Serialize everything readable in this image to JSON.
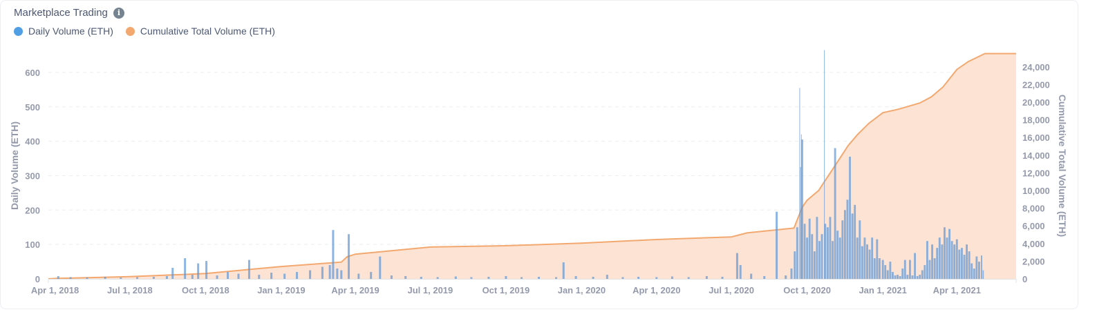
{
  "header": {
    "title": "Marketplace Trading",
    "info_icon": "info-circle-icon"
  },
  "chart_data": {
    "type": "bar+area",
    "title": "Marketplace Trading",
    "legend_position": "top-left",
    "grid": true,
    "series": [
      {
        "name": "Daily Volume (ETH)",
        "type": "bar",
        "axis": "left",
        "color": "#509ee3"
      },
      {
        "name": "Cumulative Total Volume (ETH)",
        "type": "area",
        "axis": "right",
        "color": "#f2a86f"
      }
    ],
    "xlabel": "",
    "ylabel_left": "Daily Volume (ETH)",
    "ylabel_right": "Cumulative Total Volume (ETH)",
    "xlim": [
      "2018-03-24",
      "2021-06-12"
    ],
    "ylim_left": [
      0,
      660
    ],
    "ylim_right": [
      0,
      25700
    ],
    "x_ticks": [
      {
        "date": "2018-04-01",
        "label": "Apr 1, 2018"
      },
      {
        "date": "2018-07-01",
        "label": "Jul 1, 2018"
      },
      {
        "date": "2018-10-01",
        "label": "Oct 1, 2018"
      },
      {
        "date": "2019-01-01",
        "label": "Jan 1, 2019"
      },
      {
        "date": "2019-04-01",
        "label": "Apr 1, 2019"
      },
      {
        "date": "2019-07-01",
        "label": "Jul 1, 2019"
      },
      {
        "date": "2019-10-01",
        "label": "Oct 1, 2019"
      },
      {
        "date": "2020-01-01",
        "label": "Jan 1, 2020"
      },
      {
        "date": "2020-04-01",
        "label": "Apr 1, 2020"
      },
      {
        "date": "2020-07-01",
        "label": "Jul 1, 2020"
      },
      {
        "date": "2020-10-01",
        "label": "Oct 1, 2020"
      },
      {
        "date": "2021-01-01",
        "label": "Jan 1, 2021"
      },
      {
        "date": "2021-04-01",
        "label": "Apr 1, 2021"
      }
    ],
    "y_ticks_left": [
      {
        "v": 0,
        "label": "0"
      },
      {
        "v": 100,
        "label": "100"
      },
      {
        "v": 200,
        "label": "200"
      },
      {
        "v": 300,
        "label": "300"
      },
      {
        "v": 400,
        "label": "400"
      },
      {
        "v": 500,
        "label": "500"
      },
      {
        "v": 600,
        "label": "600"
      }
    ],
    "y_ticks_right": [
      {
        "v": 0,
        "label": "0"
      },
      {
        "v": 2000,
        "label": "2,000"
      },
      {
        "v": 4000,
        "label": "4,000"
      },
      {
        "v": 6000,
        "label": "6,000"
      },
      {
        "v": 8000,
        "label": "8,000"
      },
      {
        "v": 10000,
        "label": "10,000"
      },
      {
        "v": 12000,
        "label": "12,000"
      },
      {
        "v": 14000,
        "label": "14,000"
      },
      {
        "v": 16000,
        "label": "16,000"
      },
      {
        "v": 18000,
        "label": "18,000"
      },
      {
        "v": 20000,
        "label": "20,000"
      },
      {
        "v": 22000,
        "label": "22,000"
      },
      {
        "v": 24000,
        "label": "24,000"
      }
    ],
    "daily_volume": [
      [
        "2018-04-05",
        8
      ],
      [
        "2018-04-20",
        5
      ],
      [
        "2018-05-10",
        4
      ],
      [
        "2018-06-01",
        6
      ],
      [
        "2018-06-20",
        4
      ],
      [
        "2018-07-10",
        5
      ],
      [
        "2018-07-30",
        6
      ],
      [
        "2018-08-15",
        8
      ],
      [
        "2018-08-22",
        32
      ],
      [
        "2018-09-06",
        60
      ],
      [
        "2018-09-15",
        12
      ],
      [
        "2018-09-22",
        45
      ],
      [
        "2018-10-02",
        52
      ],
      [
        "2018-10-15",
        10
      ],
      [
        "2018-10-28",
        20
      ],
      [
        "2018-11-10",
        15
      ],
      [
        "2018-11-23",
        55
      ],
      [
        "2018-12-05",
        12
      ],
      [
        "2018-12-20",
        18
      ],
      [
        "2019-01-05",
        15
      ],
      [
        "2019-01-20",
        20
      ],
      [
        "2019-02-05",
        25
      ],
      [
        "2019-02-20",
        35
      ],
      [
        "2019-03-01",
        40
      ],
      [
        "2019-03-05",
        142
      ],
      [
        "2019-03-10",
        30
      ],
      [
        "2019-03-15",
        25
      ],
      [
        "2019-03-24",
        130
      ],
      [
        "2019-04-05",
        15
      ],
      [
        "2019-04-20",
        20
      ],
      [
        "2019-05-01",
        65
      ],
      [
        "2019-05-15",
        10
      ],
      [
        "2019-06-01",
        8
      ],
      [
        "2019-06-20",
        6
      ],
      [
        "2019-07-10",
        5
      ],
      [
        "2019-08-01",
        7
      ],
      [
        "2019-08-20",
        5
      ],
      [
        "2019-09-10",
        6
      ],
      [
        "2019-10-01",
        8
      ],
      [
        "2019-10-20",
        5
      ],
      [
        "2019-11-10",
        6
      ],
      [
        "2019-12-01",
        5
      ],
      [
        "2019-12-10",
        48
      ],
      [
        "2019-12-25",
        8
      ],
      [
        "2020-01-15",
        6
      ],
      [
        "2020-02-01",
        12
      ],
      [
        "2020-02-20",
        5
      ],
      [
        "2020-03-10",
        6
      ],
      [
        "2020-04-01",
        5
      ],
      [
        "2020-04-20",
        7
      ],
      [
        "2020-05-10",
        5
      ],
      [
        "2020-06-01",
        8
      ],
      [
        "2020-06-20",
        6
      ],
      [
        "2020-07-08",
        75
      ],
      [
        "2020-07-12",
        40
      ],
      [
        "2020-07-25",
        15
      ],
      [
        "2020-08-10",
        8
      ],
      [
        "2020-08-25",
        195
      ],
      [
        "2020-09-05",
        10
      ],
      [
        "2020-09-12",
        30
      ],
      [
        "2020-09-16",
        80
      ],
      [
        "2020-09-19",
        150
      ],
      [
        "2020-09-22",
        555
      ],
      [
        "2020-09-23",
        325
      ],
      [
        "2020-09-24",
        420
      ],
      [
        "2020-09-25",
        405
      ],
      [
        "2020-09-28",
        160
      ],
      [
        "2020-10-01",
        120
      ],
      [
        "2020-10-04",
        175
      ],
      [
        "2020-10-07",
        130
      ],
      [
        "2020-10-10",
        80
      ],
      [
        "2020-10-13",
        180
      ],
      [
        "2020-10-16",
        110
      ],
      [
        "2020-10-19",
        130
      ],
      [
        "2020-10-22",
        665
      ],
      [
        "2020-10-23",
        160
      ],
      [
        "2020-10-26",
        150
      ],
      [
        "2020-10-29",
        180
      ],
      [
        "2020-11-01",
        110
      ],
      [
        "2020-11-04",
        380
      ],
      [
        "2020-11-07",
        140
      ],
      [
        "2020-11-10",
        120
      ],
      [
        "2020-11-13",
        170
      ],
      [
        "2020-11-16",
        200
      ],
      [
        "2020-11-19",
        230
      ],
      [
        "2020-11-22",
        355
      ],
      [
        "2020-11-25",
        190
      ],
      [
        "2020-11-28",
        215
      ],
      [
        "2020-12-01",
        120
      ],
      [
        "2020-12-04",
        170
      ],
      [
        "2020-12-07",
        95
      ],
      [
        "2020-12-10",
        120
      ],
      [
        "2020-12-13",
        100
      ],
      [
        "2020-12-16",
        85
      ],
      [
        "2020-12-19",
        120
      ],
      [
        "2020-12-22",
        60
      ],
      [
        "2020-12-25",
        115
      ],
      [
        "2020-12-28",
        60
      ],
      [
        "2021-01-01",
        55
      ],
      [
        "2021-01-04",
        40
      ],
      [
        "2021-01-07",
        25
      ],
      [
        "2021-01-10",
        50
      ],
      [
        "2021-01-13",
        20
      ],
      [
        "2021-01-16",
        10
      ],
      [
        "2021-01-19",
        12
      ],
      [
        "2021-01-22",
        8
      ],
      [
        "2021-01-25",
        30
      ],
      [
        "2021-01-28",
        55
      ],
      [
        "2021-01-31",
        12
      ],
      [
        "2021-02-03",
        55
      ],
      [
        "2021-02-06",
        10
      ],
      [
        "2021-02-09",
        75
      ],
      [
        "2021-02-12",
        8
      ],
      [
        "2021-02-15",
        12
      ],
      [
        "2021-02-18",
        25
      ],
      [
        "2021-02-21",
        40
      ],
      [
        "2021-02-24",
        110
      ],
      [
        "2021-02-27",
        55
      ],
      [
        "2021-03-02",
        100
      ],
      [
        "2021-03-05",
        60
      ],
      [
        "2021-03-08",
        90
      ],
      [
        "2021-03-11",
        120
      ],
      [
        "2021-03-14",
        100
      ],
      [
        "2021-03-17",
        150
      ],
      [
        "2021-03-20",
        120
      ],
      [
        "2021-03-23",
        145
      ],
      [
        "2021-03-26",
        110
      ],
      [
        "2021-03-29",
        100
      ],
      [
        "2021-04-01",
        115
      ],
      [
        "2021-04-04",
        85
      ],
      [
        "2021-04-07",
        90
      ],
      [
        "2021-04-10",
        70
      ],
      [
        "2021-04-13",
        100
      ],
      [
        "2021-04-16",
        80
      ],
      [
        "2021-04-19",
        45
      ],
      [
        "2021-04-22",
        30
      ],
      [
        "2021-04-25",
        65
      ],
      [
        "2021-04-28",
        50
      ],
      [
        "2021-05-01",
        68
      ],
      [
        "2021-05-03",
        25
      ]
    ],
    "cumulative_volume": [
      [
        "2018-03-24",
        0
      ],
      [
        "2018-04-01",
        50
      ],
      [
        "2018-07-01",
        250
      ],
      [
        "2018-10-01",
        600
      ],
      [
        "2019-01-01",
        1400
      ],
      [
        "2019-03-15",
        1900
      ],
      [
        "2019-03-22",
        2500
      ],
      [
        "2019-04-01",
        2800
      ],
      [
        "2019-07-01",
        3600
      ],
      [
        "2019-10-01",
        3750
      ],
      [
        "2020-01-01",
        4050
      ],
      [
        "2020-04-01",
        4450
      ],
      [
        "2020-07-01",
        4750
      ],
      [
        "2020-07-20",
        5200
      ],
      [
        "2020-09-15",
        5750
      ],
      [
        "2020-09-25",
        8100
      ],
      [
        "2020-10-01",
        8900
      ],
      [
        "2020-10-15",
        10000
      ],
      [
        "2020-10-22",
        11000
      ],
      [
        "2020-11-01",
        12400
      ],
      [
        "2020-11-20",
        15100
      ],
      [
        "2020-12-01",
        16300
      ],
      [
        "2020-12-15",
        17600
      ],
      [
        "2021-01-01",
        18800
      ],
      [
        "2021-01-20",
        19200
      ],
      [
        "2021-02-15",
        19900
      ],
      [
        "2021-03-01",
        20600
      ],
      [
        "2021-03-15",
        21700
      ],
      [
        "2021-04-01",
        23700
      ],
      [
        "2021-04-15",
        24600
      ],
      [
        "2021-05-05",
        25500
      ],
      [
        "2021-06-12",
        25500
      ]
    ]
  }
}
